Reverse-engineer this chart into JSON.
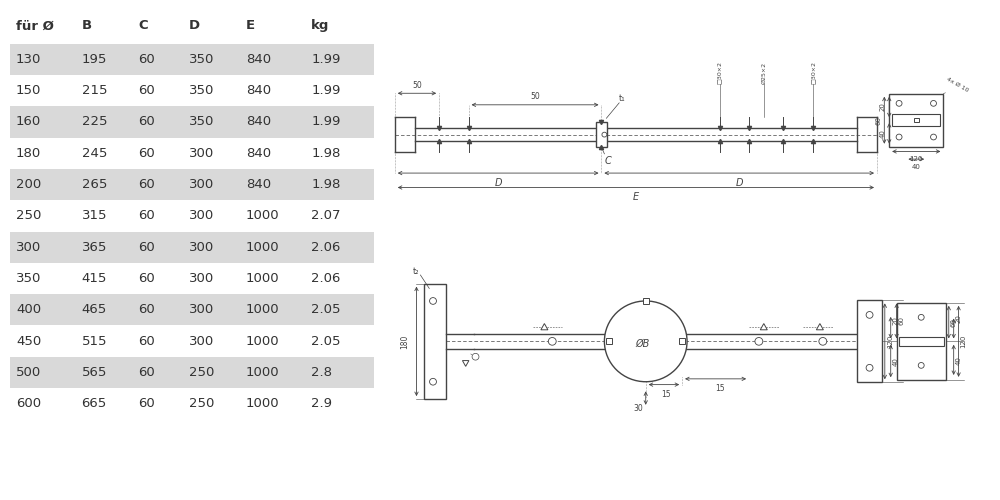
{
  "bg_color": "#ffffff",
  "table_header": [
    "für Ø",
    "B",
    "C",
    "D",
    "E",
    "kg"
  ],
  "table_rows": [
    [
      "130",
      "195",
      "60",
      "350",
      "840",
      "1.99"
    ],
    [
      "150",
      "215",
      "60",
      "350",
      "840",
      "1.99"
    ],
    [
      "160",
      "225",
      "60",
      "350",
      "840",
      "1.99"
    ],
    [
      "180",
      "245",
      "60",
      "300",
      "840",
      "1.98"
    ],
    [
      "200",
      "265",
      "60",
      "300",
      "840",
      "1.98"
    ],
    [
      "250",
      "315",
      "60",
      "300",
      "1000",
      "2.07"
    ],
    [
      "300",
      "365",
      "60",
      "300",
      "1000",
      "2.06"
    ],
    [
      "350",
      "415",
      "60",
      "300",
      "1000",
      "2.06"
    ],
    [
      "400",
      "465",
      "60",
      "300",
      "1000",
      "2.05"
    ],
    [
      "450",
      "515",
      "60",
      "300",
      "1000",
      "2.05"
    ],
    [
      "500",
      "565",
      "60",
      "250",
      "1000",
      "2.8"
    ],
    [
      "600",
      "665",
      "60",
      "250",
      "1000",
      "2.9"
    ]
  ],
  "row_shaded": [
    true,
    false,
    true,
    false,
    true,
    false,
    true,
    false,
    true,
    false,
    true,
    false
  ],
  "shade_color": "#d9d9d9",
  "text_color": "#333333",
  "line_color": "#444444",
  "dim_color": "#444444"
}
